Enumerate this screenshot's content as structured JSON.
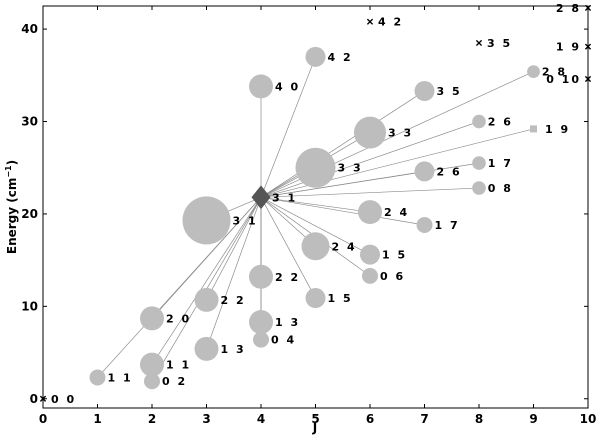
{
  "chart_data": {
    "type": "scatter",
    "xlabel": "J",
    "ylabel": "Energy (cm",
    "ylabel_sup": "−1",
    "ylabel_close": ")",
    "xlim": [
      0,
      10
    ],
    "ylim": [
      -1,
      42.5
    ],
    "xticks": [
      0,
      1,
      2,
      3,
      4,
      5,
      6,
      7,
      8,
      9,
      10
    ],
    "yticks": [
      0,
      10,
      20,
      30,
      40
    ],
    "grid": false,
    "hub": {
      "label": "3 1",
      "x": 4,
      "y": 21.8,
      "marker": "diamond",
      "color": "#555555"
    },
    "points": [
      {
        "label": "0 0",
        "x": 0,
        "y": 0,
        "size": 0,
        "marker": "x"
      },
      {
        "label": "1 1",
        "x": 1,
        "y": 2.3,
        "size": 1
      },
      {
        "label": "0 2",
        "x": 2,
        "y": 1.9,
        "size": 1
      },
      {
        "label": "1 1",
        "x": 2,
        "y": 3.7,
        "size": 2
      },
      {
        "label": "2 0",
        "x": 2,
        "y": 8.7,
        "size": 2
      },
      {
        "label": "1 3",
        "x": 3,
        "y": 5.4,
        "size": 2
      },
      {
        "label": "2 2",
        "x": 3,
        "y": 10.7,
        "size": 2
      },
      {
        "label": "3 1",
        "x": 3,
        "y": 19.3,
        "size": 5
      },
      {
        "label": "0 4",
        "x": 4,
        "y": 6.4,
        "size": 1
      },
      {
        "label": "1 3",
        "x": 4,
        "y": 8.3,
        "size": 2
      },
      {
        "label": "2 2",
        "x": 4,
        "y": 13.2,
        "size": 2
      },
      {
        "label": "4 0",
        "x": 4,
        "y": 33.8,
        "size": 2
      },
      {
        "label": "1 5",
        "x": 5,
        "y": 10.9,
        "size": 1.5
      },
      {
        "label": "2 4",
        "x": 5,
        "y": 16.5,
        "size": 2.5
      },
      {
        "label": "3 3",
        "x": 5,
        "y": 25.0,
        "size": 4
      },
      {
        "label": "4 2",
        "x": 5,
        "y": 37.0,
        "size": 1.5
      },
      {
        "label": "0 6",
        "x": 6,
        "y": 13.3,
        "size": 1
      },
      {
        "label": "1 5",
        "x": 6,
        "y": 15.6,
        "size": 1.5
      },
      {
        "label": "2 4",
        "x": 6,
        "y": 20.2,
        "size": 2
      },
      {
        "label": "3 3",
        "x": 6,
        "y": 28.8,
        "size": 3
      },
      {
        "label": "4 2",
        "x": 6,
        "y": 40.8,
        "size": 0,
        "marker": "x"
      },
      {
        "label": "1 7",
        "x": 7,
        "y": 18.8,
        "size": 1
      },
      {
        "label": "2 6",
        "x": 7,
        "y": 24.6,
        "size": 1.5
      },
      {
        "label": "3 5",
        "x": 7,
        "y": 33.3,
        "size": 1.5
      },
      {
        "label": "0 8",
        "x": 8,
        "y": 22.8,
        "size": 0.7
      },
      {
        "label": "1 7",
        "x": 8,
        "y": 25.5,
        "size": 0.7
      },
      {
        "label": "2 6",
        "x": 8,
        "y": 30.0,
        "size": 0.7
      },
      {
        "label": "3 5",
        "x": 8,
        "y": 38.5,
        "size": 0,
        "marker": "x"
      },
      {
        "label": "1 9",
        "x": 9,
        "y": 29.2,
        "size": 0.6,
        "marker": "square"
      },
      {
        "label": "2 8",
        "x": 9,
        "y": 35.4,
        "size": 0.6
      },
      {
        "label": "0 10",
        "x": 10,
        "y": 34.6,
        "size": 0,
        "marker": "x"
      },
      {
        "label": "1 9",
        "x": 10,
        "y": 38.1,
        "size": 0,
        "marker": "x"
      },
      {
        "label": "2 8",
        "x": 10,
        "y": 42.3,
        "size": 0,
        "marker": "x"
      }
    ]
  }
}
